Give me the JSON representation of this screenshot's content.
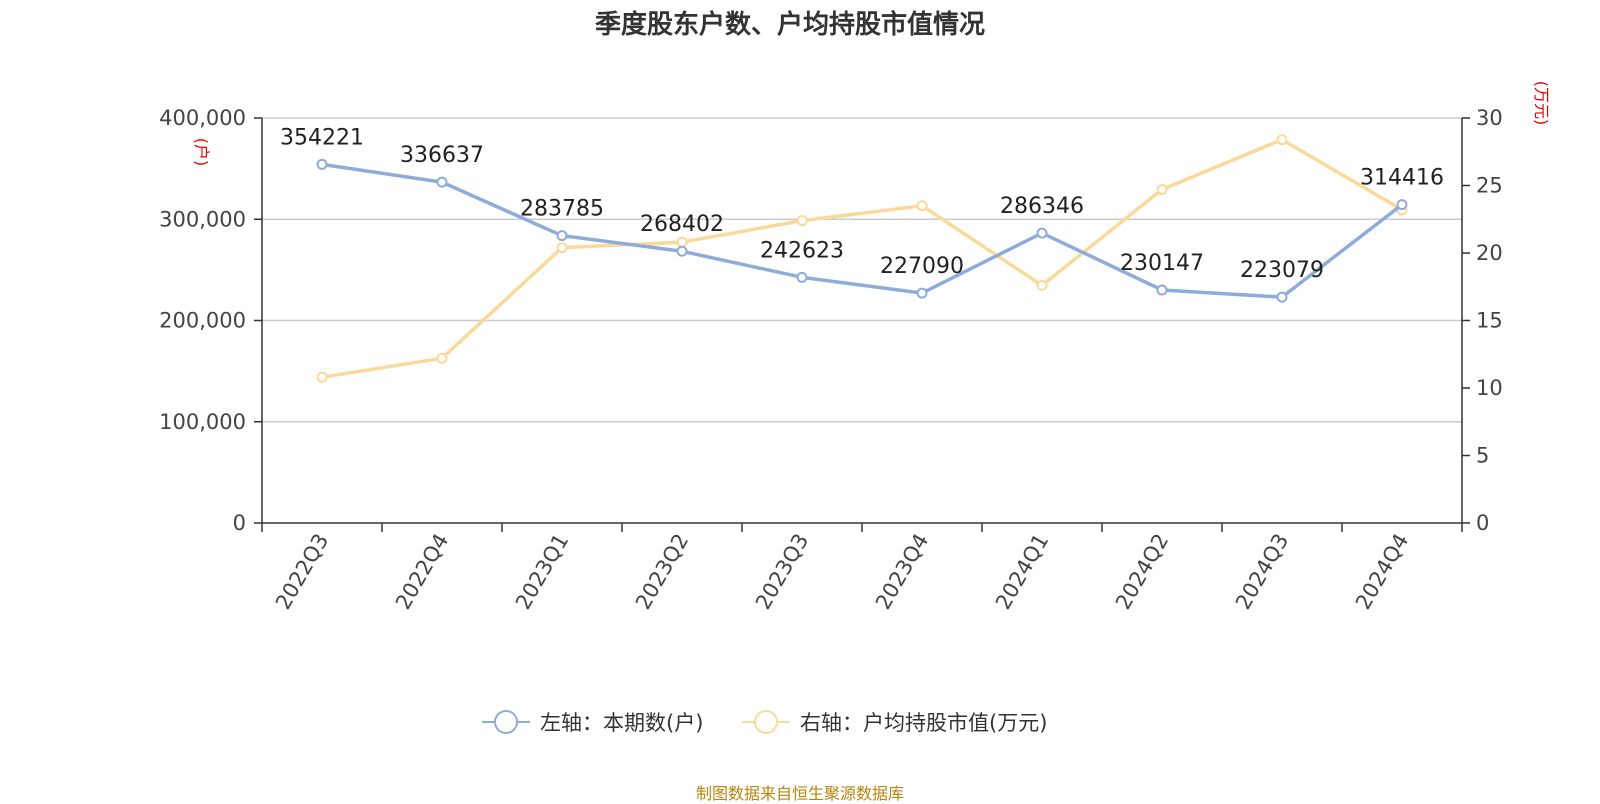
{
  "chart_data": {
    "type": "line",
    "title": "季度股东户数、户均持股市值情况",
    "categories": [
      "2022Q3",
      "2022Q4",
      "2023Q1",
      "2023Q2",
      "2023Q3",
      "2023Q4",
      "2024Q1",
      "2024Q2",
      "2024Q3",
      "2024Q4"
    ],
    "left_axis": {
      "unit_label": "(户)",
      "range": [
        0,
        400000
      ],
      "ticks": [
        "0",
        "100,000",
        "200,000",
        "300,000",
        "400,000"
      ]
    },
    "right_axis": {
      "unit_label": "(万元)",
      "range": [
        0,
        30
      ],
      "ticks": [
        "0",
        "5",
        "10",
        "15",
        "20",
        "25",
        "30"
      ]
    },
    "series": [
      {
        "name": "左轴：本期数(户)",
        "axis": "left",
        "color": "#8eacd9",
        "values": [
          354221,
          336637,
          283785,
          268402,
          242623,
          227090,
          286346,
          230147,
          223079,
          314416
        ],
        "labels": [
          "354221",
          "336637",
          "283785",
          "268402",
          "242623",
          "227090",
          "286346",
          "230147",
          "223079",
          "314416"
        ]
      },
      {
        "name": "右轴：户均持股市值(万元)",
        "axis": "right",
        "color": "#fbd99b",
        "values": [
          10.8,
          12.2,
          20.4,
          20.8,
          22.4,
          23.5,
          17.6,
          24.7,
          28.4,
          23.2
        ]
      }
    ],
    "grid": true,
    "legend_position": "bottom",
    "source_note": "制图数据来自恒生聚源数据库"
  }
}
